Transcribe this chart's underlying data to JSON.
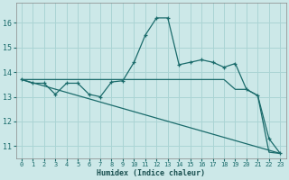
{
  "xlabel": "Humidex (Indice chaleur)",
  "xlim": [
    -0.5,
    23.5
  ],
  "ylim": [
    10.5,
    16.8
  ],
  "yticks": [
    11,
    12,
    13,
    14,
    15,
    16
  ],
  "xticks": [
    0,
    1,
    2,
    3,
    4,
    5,
    6,
    7,
    8,
    9,
    10,
    11,
    12,
    13,
    14,
    15,
    16,
    17,
    18,
    19,
    20,
    21,
    22,
    23
  ],
  "bg_color": "#cce8e8",
  "grid_color": "#aad4d4",
  "line_color": "#1a6b6b",
  "series1_x": [
    0,
    1,
    2,
    3,
    4,
    5,
    6,
    7,
    8,
    9,
    10,
    11,
    12,
    13,
    14,
    15,
    16,
    17,
    18,
    19,
    20,
    21,
    22,
    23
  ],
  "series1_y": [
    13.7,
    13.55,
    13.55,
    13.1,
    13.55,
    13.55,
    13.1,
    13.0,
    13.6,
    13.65,
    14.4,
    15.5,
    16.2,
    16.2,
    14.3,
    14.4,
    14.5,
    14.4,
    14.2,
    14.35,
    13.3,
    13.05,
    11.3,
    10.7
  ],
  "series2_x": [
    0,
    1,
    2,
    3,
    4,
    5,
    6,
    7,
    8,
    9,
    10,
    11,
    12,
    13,
    14,
    15,
    16,
    17,
    18,
    19,
    20,
    21,
    22,
    23
  ],
  "series2_y": [
    13.7,
    13.7,
    13.7,
    13.7,
    13.7,
    13.7,
    13.7,
    13.7,
    13.7,
    13.7,
    13.7,
    13.7,
    13.7,
    13.7,
    13.7,
    13.7,
    13.7,
    13.7,
    13.7,
    13.3,
    13.3,
    13.05,
    10.75,
    10.7
  ],
  "series3_x": [
    0,
    23
  ],
  "series3_y": [
    13.7,
    10.7
  ]
}
